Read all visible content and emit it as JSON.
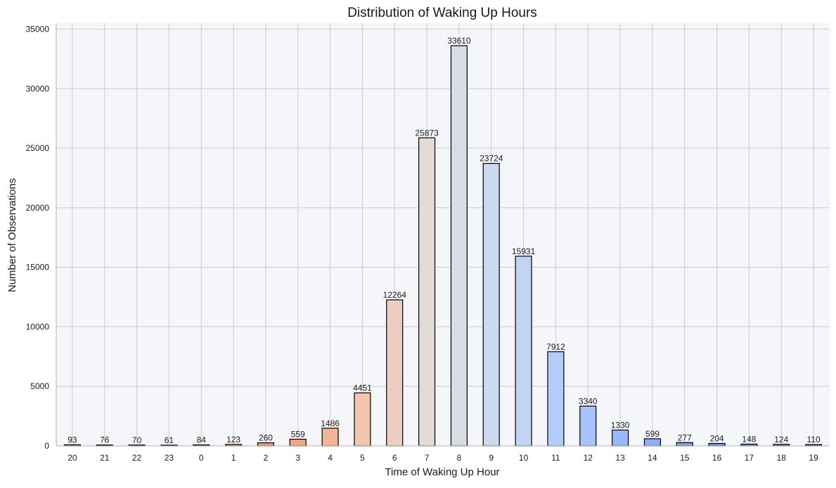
{
  "chart_data": {
    "type": "bar",
    "title": "Distribution of Waking Up Hours",
    "xlabel": "Time of Waking Up Hour",
    "ylabel": "Number of Observations",
    "categories": [
      "20",
      "21",
      "22",
      "23",
      "0",
      "1",
      "2",
      "3",
      "4",
      "5",
      "6",
      "7",
      "8",
      "9",
      "10",
      "11",
      "12",
      "13",
      "14",
      "15",
      "16",
      "17",
      "18",
      "19"
    ],
    "values": [
      93,
      76,
      70,
      61,
      84,
      123,
      260,
      559,
      1486,
      4451,
      12264,
      25873,
      33610,
      23724,
      15931,
      7912,
      3340,
      1330,
      599,
      277,
      204,
      148,
      124,
      110
    ],
    "value_labels": [
      "93",
      "76",
      "70",
      "61",
      "84",
      "123",
      "260",
      "559",
      "1486",
      "4451",
      "12264",
      "25873",
      "33610",
      "23724",
      "15931",
      "7912",
      "3340",
      "1330",
      "599",
      "277",
      "204",
      "148",
      "124",
      "110"
    ],
    "ylim": [
      0,
      35500
    ],
    "yticks": [
      0,
      5000,
      10000,
      15000,
      20000,
      25000,
      30000,
      35000
    ],
    "ytick_labels": [
      "0",
      "5000",
      "10000",
      "15000",
      "20000",
      "25000",
      "30000",
      "35000"
    ],
    "grid": true,
    "colors": [
      "#d8644f",
      "#dc6b55",
      "#e0735b",
      "#e47b62",
      "#e98469",
      "#ee9171",
      "#f29b7b",
      "#f5a686",
      "#f4b595",
      "#f2c5ac",
      "#eacfc0",
      "#e2dbd6",
      "#d6dde5",
      "#ccdaef",
      "#c1d4f4",
      "#b4ccfb",
      "#a8c4fd",
      "#99b9fe",
      "#8badfc",
      "#7e9ff7",
      "#7293f1",
      "#6787eb",
      "#5c79e0",
      "#5169d6"
    ],
    "bar_edge_color": "#000000",
    "plot_background": "#f5f6f9",
    "grid_color": "#cccccc"
  }
}
